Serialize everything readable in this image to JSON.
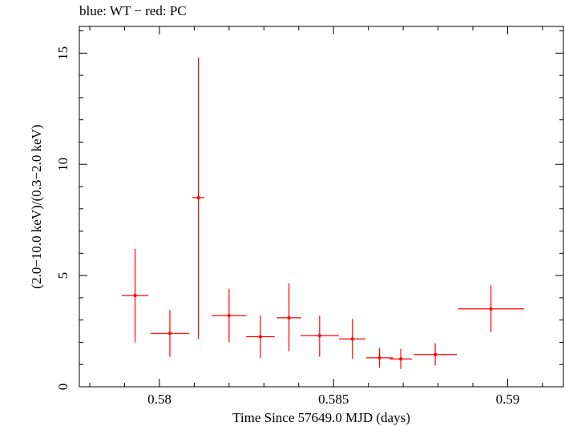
{
  "chart_data": {
    "type": "scatter",
    "title": "blue: WT − red: PC",
    "xlabel": "Time Since 57649.0 MJD (days)",
    "ylabel": "(2.0−10.0 keV)/(0.3−2.0 keV)",
    "xlim": [
      0.5777,
      0.5916
    ],
    "ylim": [
      0,
      16.2
    ],
    "xticks": [
      {
        "value": 0.58,
        "label": "0.58"
      },
      {
        "value": 0.585,
        "label": "0.585"
      },
      {
        "value": 0.59,
        "label": "0.59"
      }
    ],
    "yticks": [
      {
        "value": 0,
        "label": "0"
      },
      {
        "value": 5,
        "label": "5"
      },
      {
        "value": 10,
        "label": "10"
      },
      {
        "value": 15,
        "label": "15"
      }
    ],
    "grid": false,
    "series": [
      {
        "color": "#ff0000",
        "points": [
          {
            "x": 0.5793,
            "xerr": 0.00038,
            "y": 4.1,
            "ylo": 2.0,
            "yhi": 6.2
          },
          {
            "x": 0.5803,
            "xerr": 0.00056,
            "y": 2.4,
            "ylo": 1.35,
            "yhi": 3.45
          },
          {
            "x": 0.58112,
            "xerr": 0.00017,
            "y": 8.5,
            "ylo": 2.15,
            "yhi": 14.8
          },
          {
            "x": 0.582,
            "xerr": 0.0005,
            "y": 3.2,
            "ylo": 2.0,
            "yhi": 4.4
          },
          {
            "x": 0.5829,
            "xerr": 0.00041,
            "y": 2.25,
            "ylo": 1.3,
            "yhi": 3.2
          },
          {
            "x": 0.58372,
            "xerr": 0.00035,
            "y": 3.1,
            "ylo": 1.6,
            "yhi": 4.65
          },
          {
            "x": 0.5846,
            "xerr": 0.00055,
            "y": 2.3,
            "ylo": 1.35,
            "yhi": 3.2
          },
          {
            "x": 0.58554,
            "xerr": 0.00038,
            "y": 2.15,
            "ylo": 1.25,
            "yhi": 3.05
          },
          {
            "x": 0.58632,
            "xerr": 0.00038,
            "y": 1.3,
            "ylo": 0.85,
            "yhi": 1.75
          },
          {
            "x": 0.58693,
            "xerr": 0.00032,
            "y": 1.25,
            "ylo": 0.8,
            "yhi": 1.7
          },
          {
            "x": 0.58792,
            "xerr": 0.00062,
            "y": 1.45,
            "ylo": 0.95,
            "yhi": 1.95
          },
          {
            "x": 0.58952,
            "xerr": 0.00095,
            "y": 3.5,
            "ylo": 2.45,
            "yhi": 4.55
          }
        ]
      }
    ]
  }
}
